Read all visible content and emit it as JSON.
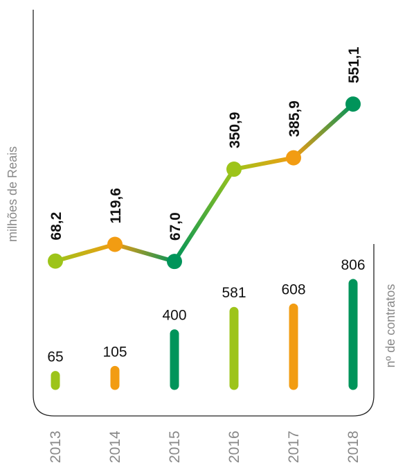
{
  "chart_data": {
    "type": "line+bar",
    "categories": [
      "2013",
      "2014",
      "2015",
      "2016",
      "2017",
      "2018"
    ],
    "series": [
      {
        "name": "milhões de Reais",
        "type": "line",
        "values": [
          68.2,
          119.6,
          67.0,
          350.9,
          385.9,
          551.1
        ],
        "labels": [
          "68,2",
          "119,6",
          "67,0",
          "350,9",
          "385,9",
          "551,1"
        ]
      },
      {
        "name": "nº de contratos",
        "type": "bar",
        "values": [
          65,
          105,
          400,
          581,
          608,
          806
        ],
        "labels": [
          "65",
          "105",
          "400",
          "581",
          "608",
          "806"
        ]
      }
    ],
    "ylabel_left": "milhões de Reais",
    "ylabel_right": "nº de contratos",
    "colors": [
      "#9dc41a",
      "#f29c12",
      "#00945a",
      "#9dc41a",
      "#f29c12",
      "#00945a"
    ],
    "line_ylim": [
      0,
      600
    ],
    "bar_ylim": [
      0,
      850
    ]
  }
}
